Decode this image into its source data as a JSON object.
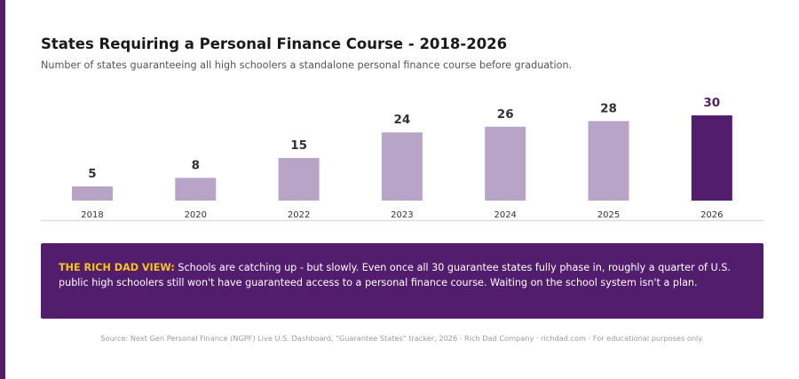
{
  "colors": {
    "accent": "#521d6c",
    "bar": "#b8a4c6",
    "bar_highlight": "#521d6c",
    "value_text": "#333333",
    "value_text_highlight": "#521d6c",
    "callout_label": "#f5c518",
    "baseline": "#dddddd"
  },
  "header": {
    "title": "States Requiring a Personal Finance Course - 2018-2026",
    "subtitle": "Number of states guaranteeing all high schoolers a standalone personal finance course before graduation."
  },
  "chart_data": {
    "type": "bar",
    "title": "States Requiring a Personal Finance Course - 2018-2026",
    "subtitle": "Number of states guaranteeing all high schoolers a standalone personal finance course before graduation.",
    "categories": [
      "2018",
      "2020",
      "2022",
      "2023",
      "2024",
      "2025",
      "2026"
    ],
    "values": [
      5,
      8,
      15,
      24,
      26,
      28,
      30
    ],
    "highlight_index": 6,
    "ylim": [
      0,
      30
    ],
    "grid": false,
    "data_labels": true
  },
  "callout": {
    "label": "THE RICH DAD VIEW:",
    "text": " Schools are catching up - but slowly. Even once all 30 guarantee states fully phase in, roughly a quarter of U.S. public high schoolers still won't have guaranteed access to a personal finance course. Waiting on the school system isn't a plan."
  },
  "footer": {
    "source": "Source: Next Gen Personal Finance (NGPF) Live U.S. Dashboard, \"Guarantee States\" tracker, 2026 · Rich Dad Company · richdad.com · For educational purposes only."
  }
}
